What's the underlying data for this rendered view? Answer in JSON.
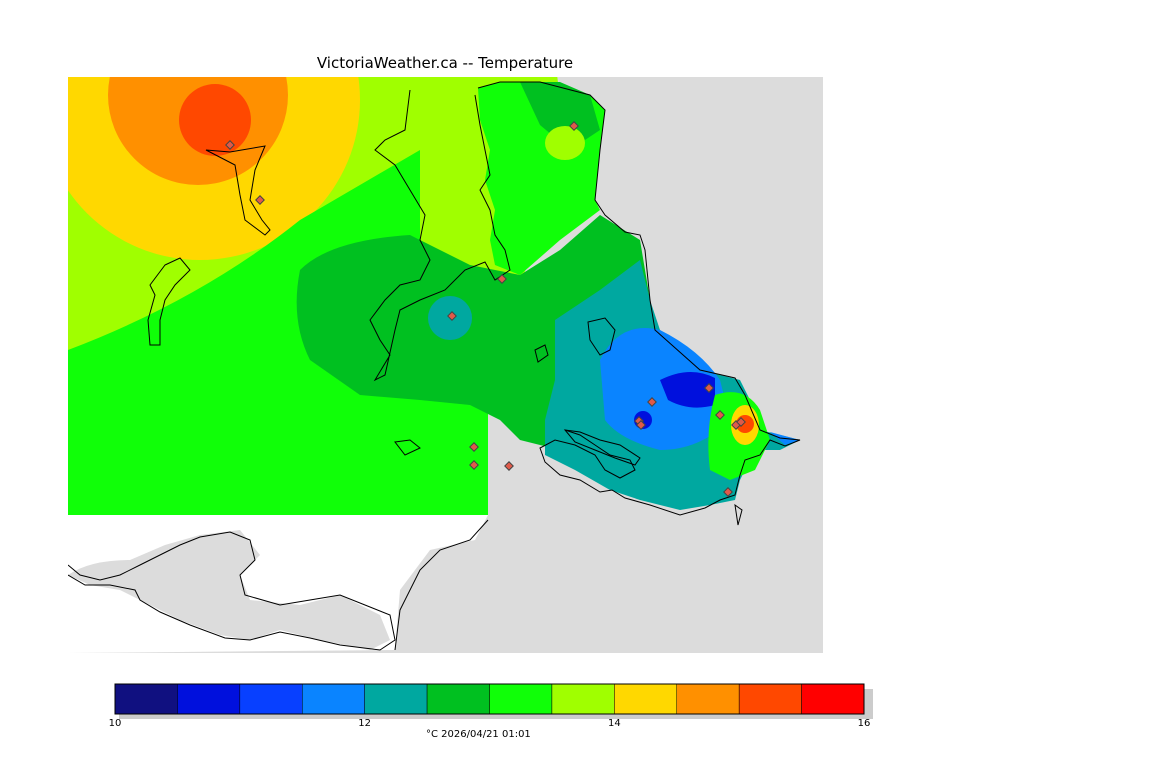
{
  "map": {
    "title": "VictoriaWeather.ca -- Temperature",
    "variable": "Temperature",
    "colors": {
      "land_outside": "#dcdcdc",
      "water": "#ffffff",
      "coast": "#000000",
      "station_fill": "#e05a4a"
    }
  },
  "legend": {
    "unit_caption": "°C  2026/04/21 01:01",
    "min": 10,
    "max": 16,
    "tick_labels": [
      "10",
      "12",
      "14",
      "16"
    ],
    "tick_values": [
      10,
      12,
      14,
      16
    ],
    "bins": [
      {
        "from": 10.0,
        "to": 10.5,
        "color": "#101080"
      },
      {
        "from": 10.5,
        "to": 11.0,
        "color": "#0010dd"
      },
      {
        "from": 11.0,
        "to": 11.5,
        "color": "#0840ff"
      },
      {
        "from": 11.5,
        "to": 12.0,
        "color": "#0a84ff"
      },
      {
        "from": 12.0,
        "to": 12.5,
        "color": "#00a8a0"
      },
      {
        "from": 12.5,
        "to": 13.0,
        "color": "#00c020"
      },
      {
        "from": 13.0,
        "to": 13.5,
        "color": "#10ff08"
      },
      {
        "from": 13.5,
        "to": 14.0,
        "color": "#a0ff00"
      },
      {
        "from": 14.0,
        "to": 14.5,
        "color": "#ffd800"
      },
      {
        "from": 14.5,
        "to": 15.0,
        "color": "#ff9000"
      },
      {
        "from": 15.0,
        "to": 15.5,
        "color": "#ff4800"
      },
      {
        "from": 15.5,
        "to": 16.0,
        "color": "#ff0000"
      }
    ]
  }
}
